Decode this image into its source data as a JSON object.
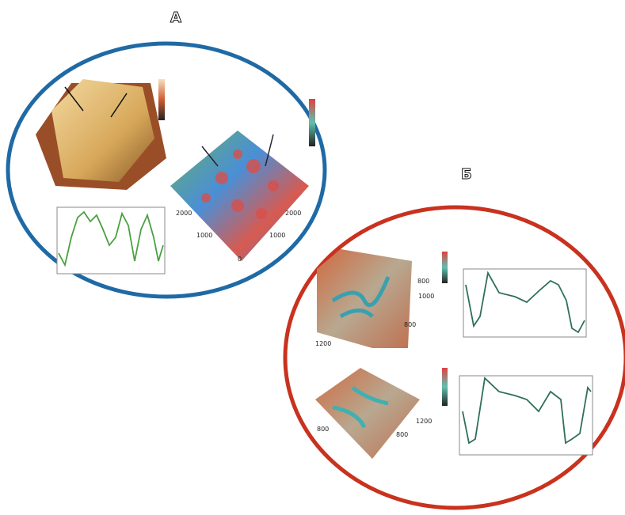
{
  "labels": {
    "a": "А",
    "b": "Б"
  },
  "panel_a": {
    "surface_ticks": [
      "2000",
      "1000",
      "0",
      "2000",
      "1000"
    ]
  },
  "panel_b": {
    "top_surface_ticks": [
      "1200",
      "800",
      "1000",
      "800"
    ],
    "bottom_surface_ticks": [
      "1200",
      "800",
      "800"
    ]
  }
}
